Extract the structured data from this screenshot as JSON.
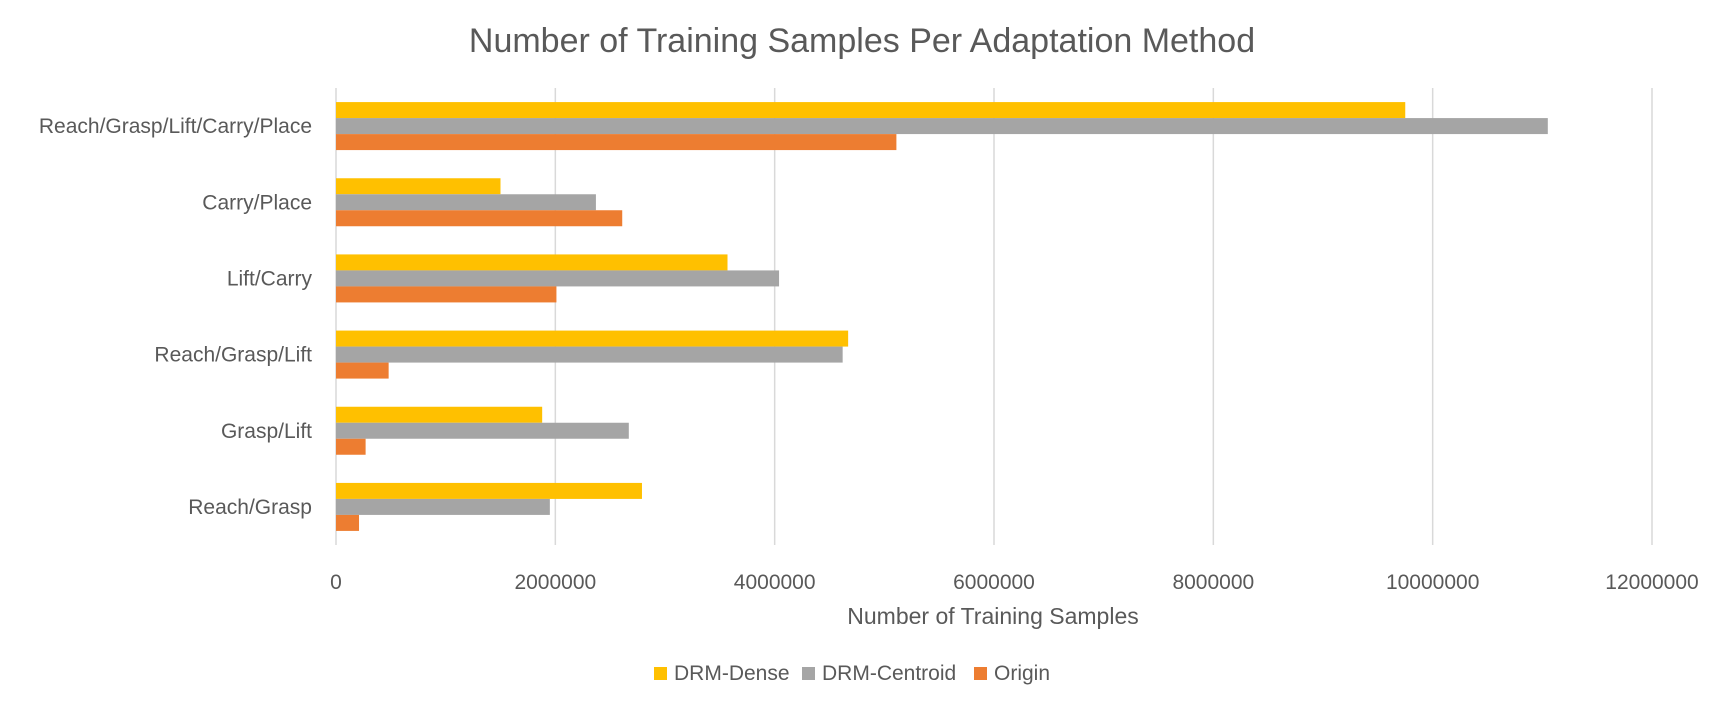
{
  "chart_data": {
    "type": "bar",
    "orientation": "horizontal",
    "title": "Number of Training Samples Per Adaptation Method",
    "xlabel": "Number of Training Samples",
    "ylabel": "",
    "xlim": [
      0,
      12000000
    ],
    "x_ticks": [
      0,
      2000000,
      4000000,
      6000000,
      8000000,
      10000000,
      12000000
    ],
    "x_tick_labels": [
      "0",
      "2000000",
      "4000000",
      "6000000",
      "8000000",
      "10000000",
      "12000000"
    ],
    "grid": true,
    "legend_position": "bottom",
    "categories": [
      "Reach/Grasp/Lift/Carry/Place",
      "Carry/Place",
      "Lift/Carry",
      "Reach/Grasp/Lift",
      "Grasp/Lift",
      "Reach/Grasp"
    ],
    "series": [
      {
        "name": "DRM-Dense",
        "color": "#FFC000",
        "values": [
          9750000,
          1500000,
          3570000,
          4670000,
          1880000,
          2790000
        ]
      },
      {
        "name": "DRM-Centroid",
        "color": "#A5A5A5",
        "values": [
          11050000,
          2370000,
          4040000,
          4620000,
          2670000,
          1950000
        ]
      },
      {
        "name": "Origin",
        "color": "#ED7D31",
        "values": [
          5110000,
          2610000,
          2010000,
          480000,
          270000,
          210000
        ]
      }
    ]
  }
}
